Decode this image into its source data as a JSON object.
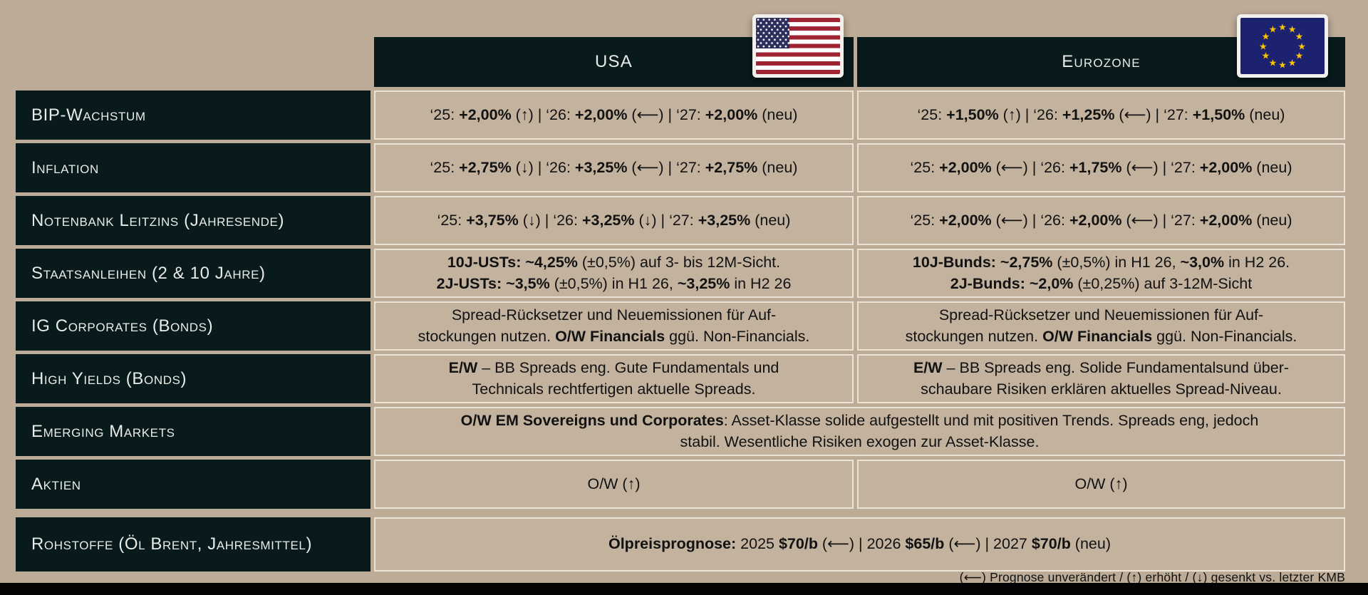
{
  "title": "Kapitalmarkt-Prognosetabelle",
  "colors": {
    "page_background": "#bcab96",
    "header_dark": "#081a1c",
    "cell_background": "#c3b29d",
    "cell_border": "#ebe4d6",
    "label_text": "#e8ece8",
    "cell_text": "#121212",
    "us_flag_red": "#9e2433",
    "us_flag_navy": "#2e2f5e",
    "eu_flag_navy": "#1c2170",
    "eu_flag_gold": "#fbc400"
  },
  "columns": [
    {
      "label": "USA",
      "flag": "usa-flag-icon"
    },
    {
      "label": "Eurozone",
      "flag": "eu-flag-icon"
    }
  ],
  "rows": [
    {
      "label": "BIP-Wachstum",
      "usa": "‘25: **+2,00%** (↑) | ‘26: **+2,00%** (⟵) | ‘27: **+2,00%** (neu)",
      "euro": "‘25: **+1,50%** (↑) | ‘26: **+1,25%** (⟵) | ‘27: **+1,50%** (neu)"
    },
    {
      "label": "Inflation",
      "usa": "‘25: **+2,75%** (↓) | ‘26: **+3,25%** (⟵) | ‘27: **+2,75%** (neu)",
      "euro": "‘25: **+2,00%** (⟵) | ‘26: **+1,75%** (⟵) | ‘27: **+2,00%** (neu)"
    },
    {
      "label": "Notenbank Leitzins (Jahresende)",
      "usa": "‘25: **+3,75%** (↓) | ‘26: **+3,25%** (↓) | ‘27: **+3,25%** (neu)",
      "euro": "‘25: **+2,00%** (⟵) | ‘26: **+2,00%** (⟵) | ‘27: **+2,00%** (neu)"
    },
    {
      "label": "Staatsanleihen (2 & 10 Jahre)",
      "usa": "**10J-USTs: ~4,25%** (±0,5%) auf 3- bis 12M-Sicht.\n**2J-USTs: ~3,5%** (±0,5%) in H1 26, **~3,25%** in H2 26",
      "euro": "**10J-Bunds: ~2,75%** (±0,5%) in H1 26, **~3,0%** in H2 26.\n**2J-Bunds: ~2,0%** (±0,25%) auf 3-12M-Sicht"
    },
    {
      "label": "IG Corporates (Bonds)",
      "usa": "Spread-Rücksetzer und Neuemissionen für Auf-\nstockungen nutzen. **O/W Financials** ggü. Non-Financials.",
      "euro": "Spread-Rücksetzer und Neuemissionen für Auf-\nstockungen nutzen. **O/W Financials** ggü. Non-Financials."
    },
    {
      "label": "High Yields (Bonds)",
      "usa": "**E/W** – BB Spreads eng. Gute Fundamentals und\nTechnicals rechtfertigen aktuelle Spreads.",
      "euro": "**E/W** – BB Spreads eng. Solide Fundamentalsund über-\nschaubare Risiken erklären aktuelles Spread-Niveau."
    },
    {
      "label": "Emerging Markets",
      "span": "**O/W EM Sovereigns und Corporates**: Asset-Klasse solide aufgestellt und mit positiven Trends. Spreads eng, jedoch\nstabil. Wesentliche Risiken exogen zur Asset-Klasse."
    },
    {
      "label": "Aktien",
      "usa": "O/W (↑)",
      "euro": "O/W (↑)"
    },
    {
      "label": "Rohstoffe (Öl Brent, Jahresmittel)",
      "span": "**Ölpreisprognose:** 2025 **$70/b** (⟵) | 2026 **$65/b** (⟵) | 2027 **$70/b** (neu)"
    }
  ],
  "footnote": "(⟵) Prognose unverändert / (↑) erhöht / (↓) gesenkt vs. letzter KMB"
}
